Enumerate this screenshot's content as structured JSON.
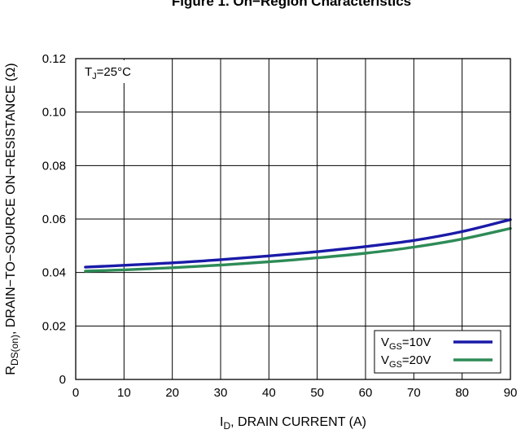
{
  "chart_data": {
    "type": "line",
    "title": "Figure 1. On−Region Characteristics",
    "xlabel": {
      "main": "I",
      "sub": "D",
      "rest": ", DRAIN CURRENT (A)"
    },
    "ylabel": {
      "main": "R",
      "sub": "DS(on)",
      "rest": ", DRAIN−TO−SOURCE ON−RESISTANCE (Ω)"
    },
    "xlim": [
      0,
      90
    ],
    "ylim": [
      0,
      0.12
    ],
    "x_ticks": [
      "0",
      "10",
      "20",
      "30",
      "40",
      "50",
      "60",
      "70",
      "80",
      "90"
    ],
    "y_ticks": [
      "0",
      "0.02",
      "0.04",
      "0.06",
      "0.08",
      "0.10",
      "0.12"
    ],
    "x_tick_values": [
      0,
      10,
      20,
      30,
      40,
      50,
      60,
      70,
      80,
      90
    ],
    "y_tick_values": [
      0,
      0.02,
      0.04,
      0.06,
      0.08,
      0.1,
      0.12
    ],
    "grid": true,
    "legend_position": "bottom-right",
    "annotation": {
      "main": "T",
      "sub": "J",
      "rest": "=25°C"
    },
    "series": [
      {
        "name": "VGS=10V",
        "label_main": "V",
        "label_sub": "GS",
        "label_rest": "=10V",
        "color": "#1a1aa8",
        "x": [
          2,
          10,
          20,
          30,
          40,
          50,
          60,
          70,
          80,
          90
        ],
        "y": [
          0.042,
          0.0427,
          0.0436,
          0.0448,
          0.0462,
          0.0478,
          0.0497,
          0.052,
          0.0553,
          0.0598
        ]
      },
      {
        "name": "VGS=20V",
        "label_main": "V",
        "label_sub": "GS",
        "label_rest": "=20V",
        "color": "#2e8b57",
        "x": [
          2,
          10,
          20,
          30,
          40,
          50,
          60,
          70,
          80,
          90
        ],
        "y": [
          0.0405,
          0.041,
          0.0418,
          0.0428,
          0.044,
          0.0455,
          0.0472,
          0.0495,
          0.0525,
          0.0565
        ]
      }
    ]
  }
}
